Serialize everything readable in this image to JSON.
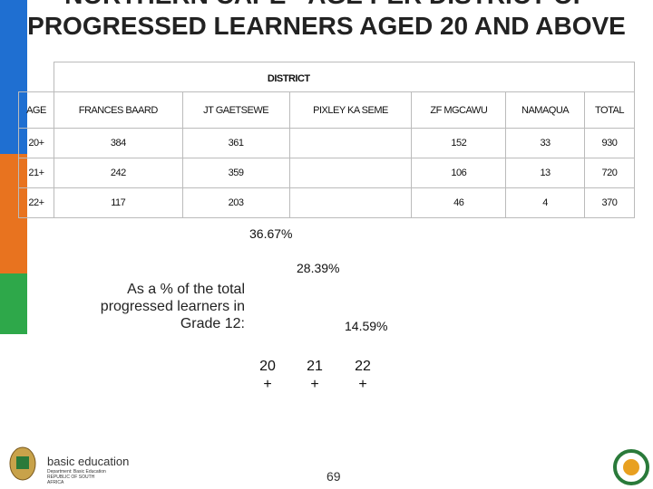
{
  "header": {
    "title": "NORTHERN CAPE - AGE PER DISTRICT OF PROGRESSED LEARNERS AGED 20 AND ABOVE"
  },
  "table": {
    "group_header": "DISTRICT",
    "columns": [
      "AGE",
      "FRANCES BAARD",
      "JT GAETSEWE",
      "PIXLEY KA SEME",
      "ZF MGCAWU",
      "NAMAQUA",
      "TOTAL"
    ],
    "rows": [
      [
        "20+",
        384,
        361,
        null,
        152,
        33,
        930
      ],
      [
        "21+",
        242,
        359,
        null,
        106,
        13,
        720
      ],
      [
        "22+",
        117,
        203,
        null,
        46,
        4,
        370
      ]
    ]
  },
  "chart": {
    "label": "As a % of the total progressed learners in Grade 12:",
    "categories": [
      "20 +",
      "21 +",
      "22 +"
    ],
    "values": [
      36.67,
      28.39,
      14.59
    ],
    "value_labels": [
      "36.67%",
      "28.39%",
      "14.59%"
    ],
    "colors": [
      "#1f6fd1",
      "#e8731f",
      "#2ea84a"
    ]
  },
  "footer": {
    "logo_title": "basic education",
    "logo_sub": "Department: Basic Education REPUBLIC OF SOUTH AFRICA",
    "page": "69"
  }
}
